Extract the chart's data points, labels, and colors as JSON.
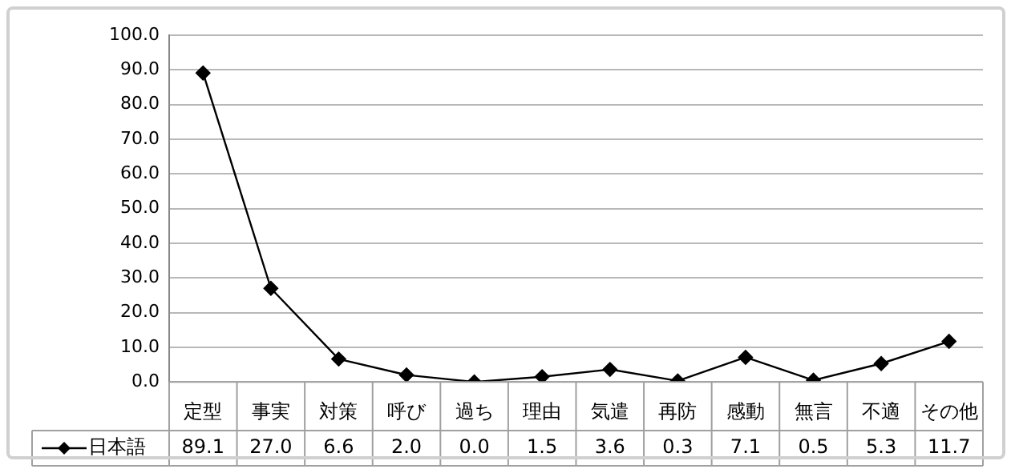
{
  "chart_data": {
    "type": "line",
    "categories": [
      "定型",
      "事実",
      "対策",
      "呼び",
      "過ち",
      "理由",
      "気遣",
      "再防",
      "感動",
      "無言",
      "不適",
      "その他"
    ],
    "series": [
      {
        "name": "日本語",
        "color": "#000000",
        "values": [
          89.1,
          27.0,
          6.6,
          2.0,
          0.0,
          1.5,
          3.6,
          0.3,
          7.1,
          0.5,
          5.3,
          11.7
        ],
        "value_labels": [
          "89.1",
          "27.0",
          "6.6",
          "2.0",
          "0.0",
          "1.5",
          "3.6",
          "0.3",
          "7.1",
          "0.5",
          "5.3",
          "11.7"
        ]
      }
    ],
    "ylim": [
      0,
      100
    ],
    "yticks": [
      {
        "value": 0,
        "label": "0.0"
      },
      {
        "value": 10,
        "label": "10.0"
      },
      {
        "value": 20,
        "label": "20.0"
      },
      {
        "value": 30,
        "label": "30.0"
      },
      {
        "value": 40,
        "label": "40.0"
      },
      {
        "value": 50,
        "label": "50.0"
      },
      {
        "value": 60,
        "label": "60.0"
      },
      {
        "value": 70,
        "label": "70.0"
      },
      {
        "value": 80,
        "label": "80.0"
      },
      {
        "value": 90,
        "label": "90.0"
      },
      {
        "value": 100,
        "label": "100.0"
      }
    ],
    "grid": "y",
    "marker": "diamond",
    "line_style": "solid",
    "legend": "bottom left"
  }
}
